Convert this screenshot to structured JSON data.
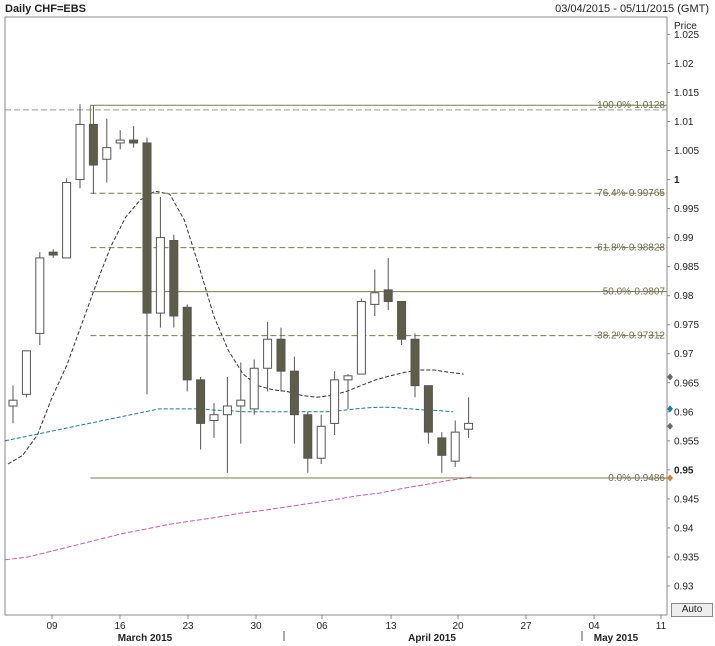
{
  "header": {
    "title": "Daily CHF=EBS",
    "date_range": "03/04/2015 - 05/11/2015 (GMT)"
  },
  "controls": {
    "auto_label": "Auto"
  },
  "chart_data": {
    "type": "candlestick",
    "ylabel": "Price",
    "ylim": [
      0.925,
      1.028
    ],
    "y_ticks": [
      "1.025",
      "1.02",
      "1.015",
      "1.01",
      "1.005",
      "1",
      "0.995",
      "0.99",
      "0.985",
      "0.98",
      "0.975",
      "0.97",
      "0.965",
      "0.96",
      "0.955",
      "0.95",
      "0.945",
      "0.94",
      "0.935",
      "0.93"
    ],
    "x_ticks": [
      "09",
      "16",
      "23",
      "30",
      "06",
      "13",
      "20",
      "27",
      "04",
      "11"
    ],
    "months": [
      "March 2015",
      "April 2015",
      "May 2015"
    ],
    "candles": [
      {
        "o": 0.961,
        "h": 0.9645,
        "l": 0.958,
        "c": 0.962
      },
      {
        "o": 0.963,
        "h": 0.9705,
        "l": 0.9625,
        "c": 0.9705
      },
      {
        "o": 0.9735,
        "h": 0.9875,
        "l": 0.9715,
        "c": 0.9865
      },
      {
        "o": 0.9875,
        "h": 0.988,
        "l": 0.9865,
        "c": 0.987
      },
      {
        "o": 0.9865,
        "h": 1.0002,
        "l": 0.9865,
        "c": 0.9995
      },
      {
        "o": 1.0,
        "h": 1.013,
        "l": 0.9985,
        "c": 1.0095
      },
      {
        "o": 1.0095,
        "h": 1.0128,
        "l": 0.9975,
        "c": 1.0025
      },
      {
        "o": 1.0035,
        "h": 1.0105,
        "l": 0.9995,
        "c": 1.0055
      },
      {
        "o": 1.0063,
        "h": 1.0085,
        "l": 1.0052,
        "c": 1.0068
      },
      {
        "o": 1.0068,
        "h": 1.0092,
        "l": 1.0055,
        "c": 1.0063
      },
      {
        "o": 1.0063,
        "h": 1.0072,
        "l": 0.963,
        "c": 0.977
      },
      {
        "o": 0.977,
        "h": 0.997,
        "l": 0.9745,
        "c": 0.99
      },
      {
        "o": 0.9895,
        "h": 0.9905,
        "l": 0.9745,
        "c": 0.9765
      },
      {
        "o": 0.978,
        "h": 0.9785,
        "l": 0.9635,
        "c": 0.9655
      },
      {
        "o": 0.9655,
        "h": 0.966,
        "l": 0.9535,
        "c": 0.958
      },
      {
        "o": 0.9585,
        "h": 0.9615,
        "l": 0.9555,
        "c": 0.9595
      },
      {
        "o": 0.9595,
        "h": 0.966,
        "l": 0.9495,
        "c": 0.961
      },
      {
        "o": 0.961,
        "h": 0.9685,
        "l": 0.9545,
        "c": 0.962
      },
      {
        "o": 0.9605,
        "h": 0.969,
        "l": 0.9595,
        "c": 0.9675
      },
      {
        "o": 0.9675,
        "h": 0.9755,
        "l": 0.9635,
        "c": 0.9725
      },
      {
        "o": 0.9725,
        "h": 0.9745,
        "l": 0.9635,
        "c": 0.967
      },
      {
        "o": 0.967,
        "h": 0.9695,
        "l": 0.9545,
        "c": 0.9595
      },
      {
        "o": 0.9595,
        "h": 0.96,
        "l": 0.9495,
        "c": 0.952
      },
      {
        "o": 0.952,
        "h": 0.9595,
        "l": 0.951,
        "c": 0.9575
      },
      {
        "o": 0.958,
        "h": 0.967,
        "l": 0.956,
        "c": 0.9655
      },
      {
        "o": 0.9655,
        "h": 0.9665,
        "l": 0.9605,
        "c": 0.9662
      },
      {
        "o": 0.9665,
        "h": 0.9795,
        "l": 0.9665,
        "c": 0.979
      },
      {
        "o": 0.9785,
        "h": 0.9845,
        "l": 0.9765,
        "c": 0.9805
      },
      {
        "o": 0.981,
        "h": 0.9865,
        "l": 0.9775,
        "c": 0.979
      },
      {
        "o": 0.979,
        "h": 0.979,
        "l": 0.9715,
        "c": 0.9725
      },
      {
        "o": 0.9725,
        "h": 0.9735,
        "l": 0.9625,
        "c": 0.9645
      },
      {
        "o": 0.9645,
        "h": 0.9645,
        "l": 0.9545,
        "c": 0.9565
      },
      {
        "o": 0.9555,
        "h": 0.9565,
        "l": 0.9495,
        "c": 0.9525
      },
      {
        "o": 0.9515,
        "h": 0.9585,
        "l": 0.9505,
        "c": 0.9565
      },
      {
        "o": 0.957,
        "h": 0.9625,
        "l": 0.9555,
        "c": 0.958
      }
    ],
    "fib_levels": [
      {
        "label": "100.0%-1.0128",
        "value": 1.0128
      },
      {
        "label": "76.4%-0.99765",
        "value": 0.99765
      },
      {
        "label": "61.8%-0.98828",
        "value": 0.98828
      },
      {
        "label": "50.0%-0.9807",
        "value": 0.9807
      },
      {
        "label": "38.2%-0.97312",
        "value": 0.97312
      },
      {
        "label": "0.0%-0.9486",
        "value": 0.9486
      }
    ],
    "reference_line": 1.012,
    "ma_black": [
      0.951,
      0.9525,
      0.956,
      0.9625,
      0.968,
      0.975,
      0.982,
      0.9885,
      0.9935,
      0.9965,
      0.998,
      0.9975,
      0.993,
      0.985,
      0.9765,
      0.9705,
      0.9665,
      0.9645,
      0.9638,
      0.9635,
      0.9628,
      0.9625,
      0.9628,
      0.9635,
      0.9645,
      0.9655,
      0.9662,
      0.9668,
      0.9672,
      0.9672,
      0.9668,
      0.9665
    ],
    "ma_teal": [
      0.955,
      0.9555,
      0.956,
      0.9565,
      0.957,
      0.9575,
      0.958,
      0.9585,
      0.959,
      0.9595,
      0.96,
      0.9605,
      0.9605,
      0.9605,
      0.9605,
      0.9603,
      0.9602,
      0.96,
      0.96,
      0.96,
      0.96,
      0.96,
      0.96,
      0.96,
      0.9602,
      0.9605,
      0.9607,
      0.9608,
      0.9607,
      0.9605,
      0.9603,
      0.9602,
      0.96
    ],
    "ma_pink": [
      0.9345,
      0.935,
      0.936,
      0.937,
      0.938,
      0.939,
      0.9398,
      0.9406,
      0.9412,
      0.9418,
      0.9425,
      0.943,
      0.9436,
      0.9442,
      0.9448,
      0.9455,
      0.946,
      0.9468,
      0.9475,
      0.9482,
      0.9488
    ],
    "price_markers": [
      {
        "value": 0.966,
        "color": "#666666"
      },
      {
        "value": 0.9605,
        "color": "#1a7fa8"
      },
      {
        "value": 0.9575,
        "color": "#666666"
      },
      {
        "value": 0.9486,
        "color": "#e07b2a"
      }
    ],
    "colors": {
      "bear": "#5e5e48",
      "bull": "#ffffff",
      "outline": "#555555",
      "grid": "#999999",
      "fib": "#7a7a52",
      "teal": "#1d7d8a",
      "pink": "#c060b0",
      "ma": "#333333"
    }
  }
}
